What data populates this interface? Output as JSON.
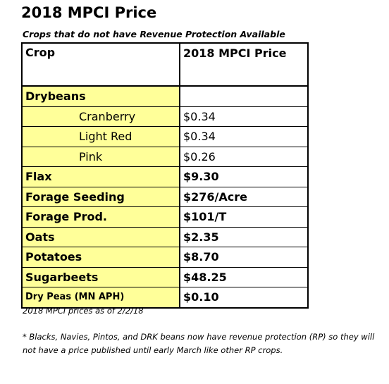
{
  "title": "2018 MPCI Price",
  "subtitle": "Crops that do not have Revenue Protection Available",
  "table": {
    "header": [
      "Crop",
      "2018 MPCI Price"
    ],
    "rows": [
      {
        "crop": "Drybeans",
        "varieties": [
          {
            "crop": "Cranberry",
            "price": "$0.34"
          },
          {
            "crop": "Light Red",
            "price": "$0.34"
          },
          {
            "crop": "Pink",
            "price": "$0.26"
          }
        ]
      },
      {
        "crop": "Flax",
        "price": "$9.30"
      },
      {
        "crop": "Forage Seeding",
        "price": "$276/Acre"
      },
      {
        "crop": "Forage Prod.",
        "price": "$101/T"
      },
      {
        "crop": "Oats",
        "price": "$2.35"
      },
      {
        "crop": "Potatoes",
        "price": "$8.70"
      },
      {
        "crop": "Sugarbeets",
        "price": "$48.25"
      },
      {
        "crop": "Dry Peas (MN APH)",
        "price": "$0.10"
      }
    ]
  },
  "footnote": "2018 MPCI prices as of 2/2/18",
  "note": "* Blacks, Navies, Pintos, and DRK beans now have revenue protection (RP) so they will not have a price published until early March like other RP crops."
}
